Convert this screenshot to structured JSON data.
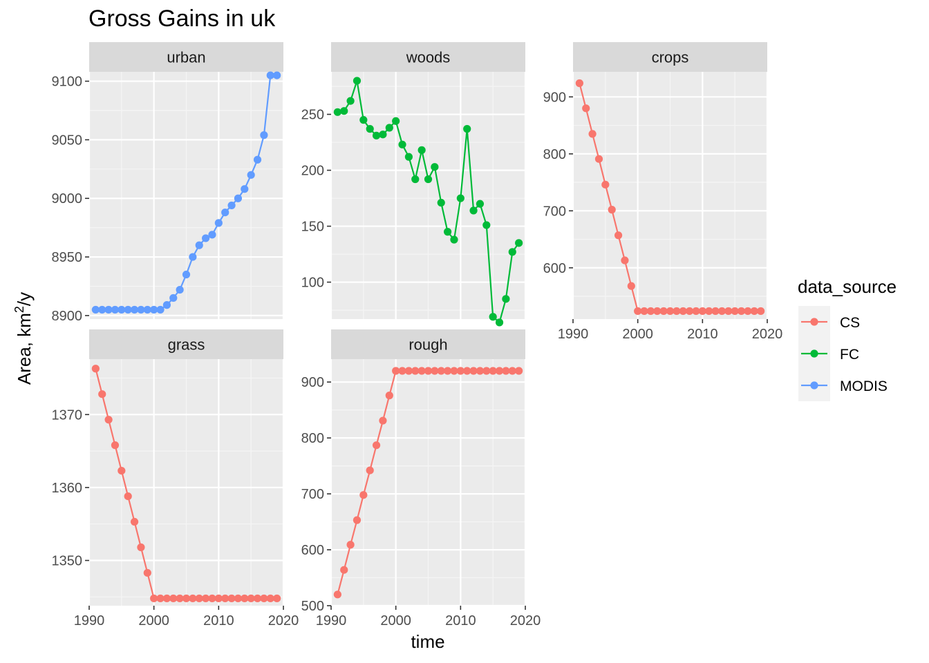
{
  "chart_data": {
    "type": "line",
    "title": "Gross Gains in uk",
    "xlabel": "time",
    "ylabel": "Area,  km",
    "ylabel_superscript": "2",
    "ylabel_suffix": "/y",
    "xlim": [
      1990,
      2020
    ],
    "x_ticks": [
      1990,
      2000,
      2010,
      2020
    ],
    "x_tick_labels": [
      "1990",
      "2000",
      "2010",
      "2020"
    ],
    "legend": {
      "title": "data_source",
      "placement": "right",
      "entries": [
        {
          "name": "CS",
          "color": "#F8766D"
        },
        {
          "name": "FC",
          "color": "#00BA38"
        },
        {
          "name": "MODIS",
          "color": "#619CFF"
        }
      ]
    },
    "facets": [
      {
        "label": "urban",
        "source": "MODIS",
        "ylim": [
          8897,
          9108
        ],
        "y_ticks": [
          8900,
          8950,
          9000,
          9050,
          9100
        ],
        "y_tick_labels": [
          "8900",
          "8950",
          "9000",
          "9050",
          "9100"
        ],
        "x": [
          1991,
          1992,
          1993,
          1994,
          1995,
          1996,
          1997,
          1998,
          1999,
          2000,
          2001,
          2002,
          2003,
          2004,
          2005,
          2006,
          2007,
          2008,
          2009,
          2010,
          2011,
          2012,
          2013,
          2014,
          2015,
          2016,
          2017,
          2018,
          2019
        ],
        "y": [
          8905,
          8905,
          8905,
          8905,
          8905,
          8905,
          8905,
          8905,
          8905,
          8905,
          8905,
          8909,
          8915,
          8922,
          8935,
          8950,
          8960,
          8966,
          8969,
          8979,
          8988,
          8994,
          9000,
          9008,
          9020,
          9033,
          9054,
          9105,
          9105
        ]
      },
      {
        "label": "woods",
        "source": "FC",
        "ylim": [
          67,
          288
        ],
        "y_ticks": [
          100,
          150,
          200,
          250
        ],
        "y_tick_labels": [
          "100",
          "150",
          "200",
          "250"
        ],
        "x": [
          1991,
          1992,
          1993,
          1994,
          1995,
          1996,
          1997,
          1998,
          1999,
          2000,
          2001,
          2002,
          2003,
          2004,
          2005,
          2006,
          2007,
          2008,
          2009,
          2010,
          2011,
          2012,
          2013,
          2014,
          2015,
          2016,
          2017,
          2018,
          2019
        ],
        "y": [
          252,
          253,
          262,
          280,
          245,
          237,
          231,
          232,
          238,
          244,
          223,
          212,
          192,
          218,
          192,
          203,
          171,
          145,
          138,
          175,
          237,
          164,
          170,
          151,
          69,
          64,
          85,
          127,
          135
        ]
      },
      {
        "label": "crops",
        "source": "CS",
        "ylim": [
          510,
          944
        ],
        "y_ticks": [
          600,
          700,
          800,
          900
        ],
        "y_tick_labels": [
          "600",
          "700",
          "800",
          "900"
        ],
        "x": [
          1991,
          1992,
          1993,
          1994,
          1995,
          1996,
          1997,
          1998,
          1999,
          2000,
          2001,
          2002,
          2003,
          2004,
          2005,
          2006,
          2007,
          2008,
          2009,
          2010,
          2011,
          2012,
          2013,
          2014,
          2015,
          2016,
          2017,
          2018,
          2019
        ],
        "y": [
          924,
          880,
          835,
          791,
          746,
          702,
          657,
          613,
          568,
          524,
          524,
          524,
          524,
          524,
          524,
          524,
          524,
          524,
          524,
          524,
          524,
          524,
          524,
          524,
          524,
          524,
          524,
          524,
          524
        ]
      },
      {
        "label": "grass",
        "source": "CS",
        "ylim": [
          1343.8,
          1377.6
        ],
        "y_ticks": [
          1350,
          1360,
          1370
        ],
        "y_tick_labels": [
          "1350",
          "1360",
          "1370"
        ],
        "x": [
          1991,
          1992,
          1993,
          1994,
          1995,
          1996,
          1997,
          1998,
          1999,
          2000,
          2001,
          2002,
          2003,
          2004,
          2005,
          2006,
          2007,
          2008,
          2009,
          2010,
          2011,
          2012,
          2013,
          2014,
          2015,
          2016,
          2017,
          2018,
          2019
        ],
        "y": [
          1376.3,
          1372.8,
          1369.3,
          1365.8,
          1362.3,
          1358.8,
          1355.3,
          1351.8,
          1348.3,
          1344.8,
          1344.8,
          1344.8,
          1344.8,
          1344.8,
          1344.8,
          1344.8,
          1344.8,
          1344.8,
          1344.8,
          1344.8,
          1344.8,
          1344.8,
          1344.8,
          1344.8,
          1344.8,
          1344.8,
          1344.8,
          1344.8,
          1344.8
        ]
      },
      {
        "label": "rough",
        "source": "CS",
        "ylim": [
          500,
          941
        ],
        "y_ticks": [
          500,
          600,
          700,
          800,
          900
        ],
        "y_tick_labels": [
          "500",
          "600",
          "700",
          "800",
          "900"
        ],
        "x": [
          1991,
          1992,
          1993,
          1994,
          1995,
          1996,
          1997,
          1998,
          1999,
          2000,
          2001,
          2002,
          2003,
          2004,
          2005,
          2006,
          2007,
          2008,
          2009,
          2010,
          2011,
          2012,
          2013,
          2014,
          2015,
          2016,
          2017,
          2018,
          2019
        ],
        "y": [
          520,
          564,
          609,
          653,
          698,
          742,
          787,
          831,
          876,
          920,
          920,
          920,
          920,
          920,
          920,
          920,
          920,
          920,
          920,
          920,
          920,
          920,
          920,
          920,
          920,
          920,
          920,
          920,
          920
        ]
      }
    ]
  }
}
